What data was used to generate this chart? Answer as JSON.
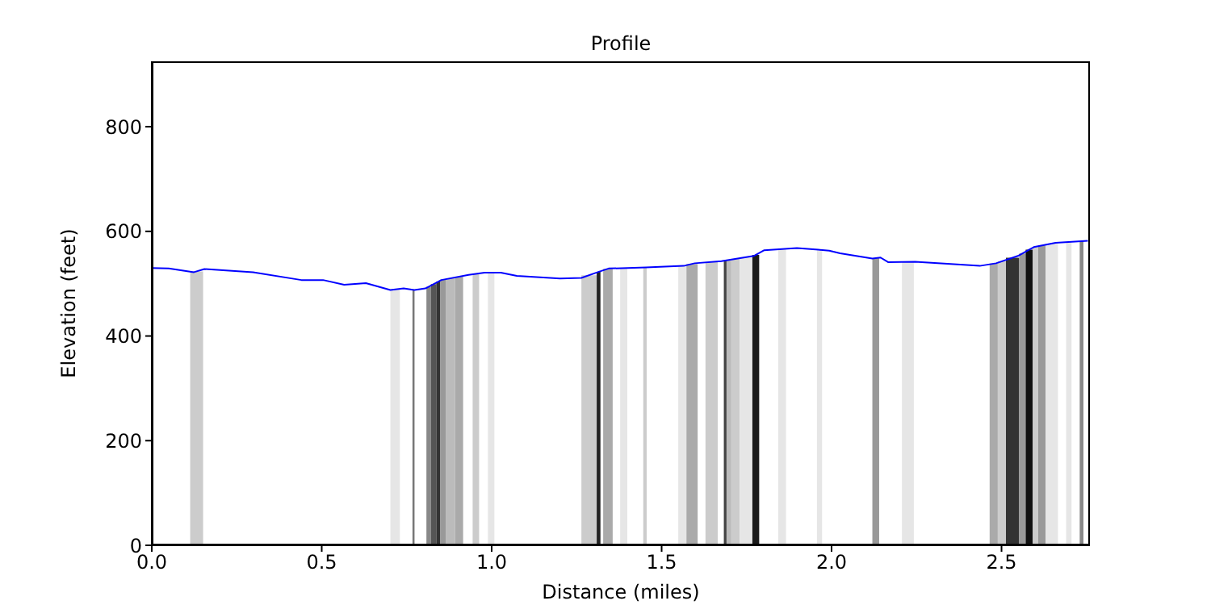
{
  "chart_data": {
    "type": "line",
    "title": "Profile",
    "xlabel": "Distance (miles)",
    "ylabel": "Elevation (feet)",
    "xlim": [
      0,
      2.76
    ],
    "ylim": [
      0,
      925
    ],
    "xticks": [
      {
        "value": 0,
        "label": "0.0"
      },
      {
        "value": 0.5,
        "label": "0.5"
      },
      {
        "value": 1,
        "label": "1.0"
      },
      {
        "value": 1.5,
        "label": "1.5"
      },
      {
        "value": 2,
        "label": "2.0"
      },
      {
        "value": 2.5,
        "label": "2.5"
      }
    ],
    "yticks": [
      0,
      200,
      400,
      600,
      800
    ],
    "series": [
      {
        "color": "#0000ff",
        "x": [
          0,
          0.05,
          0.124,
          0.155,
          0.298,
          0.44,
          0.504,
          0.566,
          0.63,
          0.702,
          0.741,
          0.773,
          0.805,
          0.852,
          0.932,
          0.979,
          1.027,
          1.074,
          1.201,
          1.264,
          1.312,
          1.344,
          1.454,
          1.565,
          1.597,
          1.676,
          1.771,
          1.802,
          1.898,
          1.961,
          1.993,
          2.025,
          2.12,
          2.144,
          2.167,
          2.246,
          2.436,
          2.484,
          2.548,
          2.595,
          2.659,
          2.754
        ],
        "values": [
          530,
          529,
          522,
          528,
          522,
          507,
          507,
          498,
          501,
          488,
          491,
          488,
          491,
          507,
          517,
          521,
          521,
          515,
          510,
          511,
          522,
          529,
          531,
          534,
          539,
          543,
          553,
          564,
          568,
          565,
          563,
          558,
          548,
          550,
          541,
          542,
          534,
          539,
          553,
          570,
          578,
          582
        ]
      }
    ],
    "bands": [
      {
        "axis": "x",
        "from": 0.113,
        "to": 0.151,
        "color": "#cccccc"
      },
      {
        "axis": "x",
        "from": 0.702,
        "to": 0.73,
        "color": "#e6e6e6"
      },
      {
        "axis": "x",
        "from": 0.767,
        "to": 0.773,
        "color": "#777777"
      },
      {
        "axis": "x",
        "from": 0.808,
        "to": 0.821,
        "color": "#888888"
      },
      {
        "axis": "x",
        "from": 0.821,
        "to": 0.837,
        "color": "#555555"
      },
      {
        "axis": "x",
        "from": 0.837,
        "to": 0.849,
        "color": "#333333"
      },
      {
        "axis": "x",
        "from": 0.849,
        "to": 0.866,
        "color": "#999999"
      },
      {
        "axis": "x",
        "from": 0.866,
        "to": 0.892,
        "color": "#bbbbbb"
      },
      {
        "axis": "x",
        "from": 0.892,
        "to": 0.916,
        "color": "#aaaaaa"
      },
      {
        "axis": "x",
        "from": 0.944,
        "to": 0.963,
        "color": "#cccccc"
      },
      {
        "axis": "x",
        "from": 0.989,
        "to": 1.008,
        "color": "#e6e6e6"
      },
      {
        "axis": "x",
        "from": 1.264,
        "to": 1.309,
        "color": "#cccccc"
      },
      {
        "axis": "x",
        "from": 1.309,
        "to": 1.32,
        "color": "#222222"
      },
      {
        "axis": "x",
        "from": 1.328,
        "to": 1.356,
        "color": "#aaaaaa"
      },
      {
        "axis": "x",
        "from": 1.378,
        "to": 1.399,
        "color": "#e6e6e6"
      },
      {
        "axis": "x",
        "from": 1.446,
        "to": 1.456,
        "color": "#cccccc"
      },
      {
        "axis": "x",
        "from": 1.549,
        "to": 1.573,
        "color": "#e6e6e6"
      },
      {
        "axis": "x",
        "from": 1.573,
        "to": 1.606,
        "color": "#aaaaaa"
      },
      {
        "axis": "x",
        "from": 1.629,
        "to": 1.665,
        "color": "#cccccc"
      },
      {
        "axis": "x",
        "from": 1.683,
        "to": 1.691,
        "color": "#444444"
      },
      {
        "axis": "x",
        "from": 1.691,
        "to": 1.705,
        "color": "#bbbbbb"
      },
      {
        "axis": "x",
        "from": 1.705,
        "to": 1.73,
        "color": "#cccccc"
      },
      {
        "axis": "x",
        "from": 1.73,
        "to": 1.767,
        "color": "#e6e6e6"
      },
      {
        "axis": "x",
        "from": 1.767,
        "to": 1.787,
        "color": "#1a1a1a"
      },
      {
        "axis": "x",
        "from": 1.843,
        "to": 1.866,
        "color": "#e6e6e6"
      },
      {
        "axis": "x",
        "from": 1.957,
        "to": 1.972,
        "color": "#e6e6e6"
      },
      {
        "axis": "x",
        "from": 2.12,
        "to": 2.14,
        "color": "#999999"
      },
      {
        "axis": "x",
        "from": 2.207,
        "to": 2.242,
        "color": "#e6e6e6"
      },
      {
        "axis": "x",
        "from": 2.465,
        "to": 2.489,
        "color": "#aaaaaa"
      },
      {
        "axis": "x",
        "from": 2.489,
        "to": 2.513,
        "color": "#cccccc"
      },
      {
        "axis": "x",
        "from": 2.513,
        "to": 2.552,
        "color": "#333333"
      },
      {
        "axis": "x",
        "from": 2.552,
        "to": 2.571,
        "color": "#999999"
      },
      {
        "axis": "x",
        "from": 2.571,
        "to": 2.592,
        "color": "#111111"
      },
      {
        "axis": "x",
        "from": 2.592,
        "to": 2.608,
        "color": "#cccccc"
      },
      {
        "axis": "x",
        "from": 2.608,
        "to": 2.63,
        "color": "#999999"
      },
      {
        "axis": "x",
        "from": 2.63,
        "to": 2.666,
        "color": "#e6e6e6"
      },
      {
        "axis": "x",
        "from": 2.69,
        "to": 2.706,
        "color": "#e6e6e6"
      },
      {
        "axis": "x",
        "from": 2.73,
        "to": 2.741,
        "color": "#888888"
      }
    ]
  }
}
